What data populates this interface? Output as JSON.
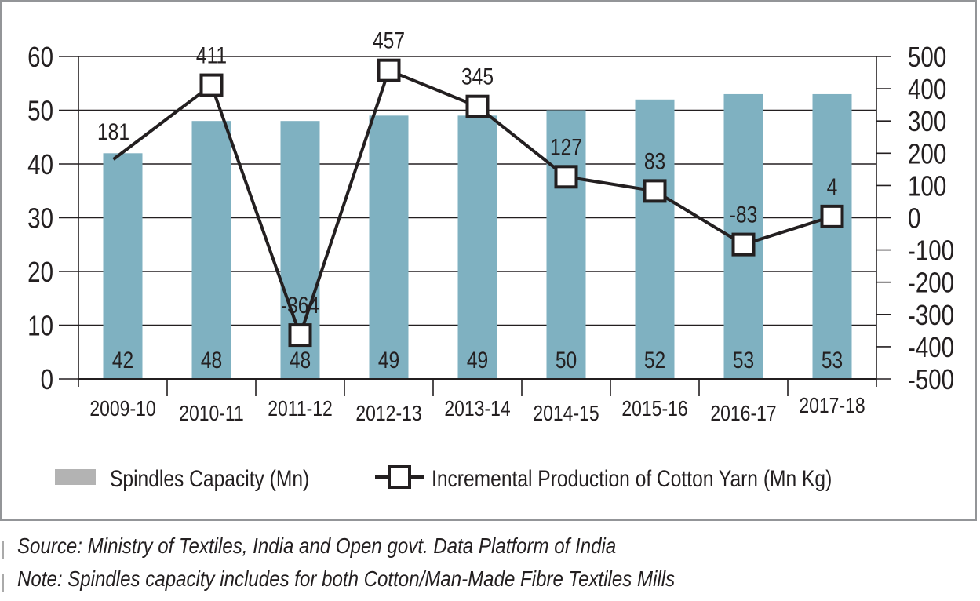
{
  "chart_data": {
    "type": "bar+line",
    "categories": [
      "2009-10",
      "2010-11",
      "2011-12",
      "2012-13",
      "2013-14",
      "2014-15",
      "2015-16",
      "2016-17",
      "2017-18"
    ],
    "series": [
      {
        "name": "Spindles Capacity (Mn)",
        "type": "bar",
        "axis": "left",
        "values": [
          42,
          48,
          48,
          49,
          49,
          50,
          52,
          53,
          53
        ],
        "color": "#7fb1c1"
      },
      {
        "name": "Incremental Production of Cotton Yarn (Mn Kg)",
        "type": "line",
        "axis": "right",
        "values": [
          181,
          411,
          -364,
          457,
          345,
          127,
          83,
          -83,
          4
        ],
        "color": "#231f20"
      }
    ],
    "left_axis": {
      "ylim": [
        0,
        60
      ],
      "ticks": [
        "0",
        "10",
        "20",
        "30",
        "40",
        "50",
        "60"
      ]
    },
    "right_axis": {
      "ylim": [
        -500,
        500
      ],
      "ticks": [
        "-500",
        "-400",
        "-300",
        "-200",
        "-100",
        "0",
        "100",
        "200",
        "300",
        "400",
        "500"
      ]
    },
    "grid": true,
    "legend": {
      "placement": "bottom",
      "legend_bar_color": "#b3b3b3"
    },
    "notes": [
      "Source: Ministry of Textiles, India and Open govt. Data Platform of India",
      "Note: Spindles capacity includes for both Cotton/Man-Made Fibre Textiles Mills"
    ]
  }
}
